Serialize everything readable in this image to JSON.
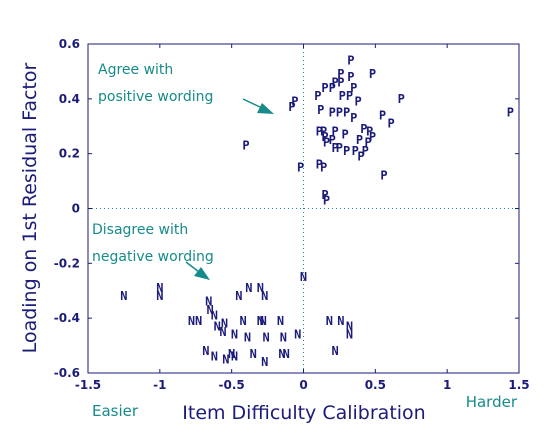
{
  "chart_data": {
    "type": "scatter",
    "xlabel": "Item Difficulty Calibration",
    "ylabel": "Loading on 1st Residual Factor",
    "xlim": [
      -1.5,
      1.5
    ],
    "ylim": [
      -0.6,
      0.6
    ],
    "xticks": [
      "-1.5",
      "-1",
      "-0.5",
      "0",
      "0.5",
      "1",
      "1.5"
    ],
    "yticks": [
      "0.6",
      "0.4",
      "0.2",
      "0",
      "-0.2",
      "-0.4",
      "-0.6"
    ],
    "x_ticks_values": [
      -1.5,
      -1,
      -0.5,
      0,
      0.5,
      1,
      1.5
    ],
    "y_ticks_values": [
      0.6,
      0.4,
      0.2,
      0,
      -0.2,
      -0.4,
      -0.6
    ],
    "reference_lines": {
      "x": 0,
      "y": 0
    },
    "x_end_labels": {
      "left": "Easier",
      "right": "Harder"
    },
    "annotations": [
      {
        "lines": [
          "Agree with",
          "positive wording"
        ]
      },
      {
        "lines": [
          "Disagree with",
          "negative wording"
        ]
      }
    ],
    "series": [
      {
        "marker": "P",
        "points": [
          [
            0.33,
            0.54
          ],
          [
            0.48,
            0.49
          ],
          [
            0.26,
            0.49
          ],
          [
            0.22,
            0.46
          ],
          [
            0.26,
            0.46
          ],
          [
            0.33,
            0.48
          ],
          [
            0.15,
            0.44
          ],
          [
            0.35,
            0.44
          ],
          [
            0.2,
            0.44
          ],
          [
            0.1,
            0.41
          ],
          [
            0.27,
            0.41
          ],
          [
            0.32,
            0.41
          ],
          [
            0.38,
            0.39
          ],
          [
            -0.06,
            0.39
          ],
          [
            0.68,
            0.4
          ],
          [
            -0.08,
            0.37
          ],
          [
            0.12,
            0.36
          ],
          [
            0.2,
            0.35
          ],
          [
            0.25,
            0.35
          ],
          [
            0.3,
            0.35
          ],
          [
            0.55,
            0.34
          ],
          [
            0.35,
            0.33
          ],
          [
            0.42,
            0.29
          ],
          [
            0.61,
            0.31
          ],
          [
            0.46,
            0.28
          ],
          [
            0.48,
            0.26
          ],
          [
            0.11,
            0.28
          ],
          [
            0.14,
            0.28
          ],
          [
            0.22,
            0.28
          ],
          [
            0.29,
            0.27
          ],
          [
            0.39,
            0.25
          ],
          [
            0.15,
            0.26
          ],
          [
            0.2,
            0.25
          ],
          [
            0.16,
            0.24
          ],
          [
            0.45,
            0.24
          ],
          [
            0.22,
            0.22
          ],
          [
            0.25,
            0.22
          ],
          [
            0.3,
            0.21
          ],
          [
            0.36,
            0.21
          ],
          [
            0.43,
            0.21
          ],
          [
            0.4,
            0.19
          ],
          [
            -0.4,
            0.23
          ],
          [
            1.44,
            0.35
          ],
          [
            0.11,
            0.16
          ],
          [
            0.14,
            0.15
          ],
          [
            -0.02,
            0.15
          ],
          [
            0.56,
            0.12
          ],
          [
            0.15,
            0.05
          ],
          [
            0.16,
            0.03
          ]
        ]
      },
      {
        "marker": "N",
        "points": [
          [
            0.0,
            -0.25
          ],
          [
            -1.25,
            -0.32
          ],
          [
            -1.0,
            -0.29
          ],
          [
            -1.0,
            -0.32
          ],
          [
            -0.38,
            -0.29
          ],
          [
            -0.45,
            -0.32
          ],
          [
            -0.3,
            -0.29
          ],
          [
            -0.27,
            -0.32
          ],
          [
            -0.66,
            -0.34
          ],
          [
            -0.65,
            -0.37
          ],
          [
            -0.62,
            -0.39
          ],
          [
            -0.78,
            -0.41
          ],
          [
            -0.73,
            -0.41
          ],
          [
            -0.55,
            -0.42
          ],
          [
            -0.42,
            -0.41
          ],
          [
            -0.3,
            -0.41
          ],
          [
            -0.28,
            -0.41
          ],
          [
            -0.16,
            -0.41
          ],
          [
            -0.6,
            -0.43
          ],
          [
            -0.56,
            -0.45
          ],
          [
            -0.48,
            -0.46
          ],
          [
            -0.39,
            -0.47
          ],
          [
            -0.26,
            -0.47
          ],
          [
            -0.04,
            -0.46
          ],
          [
            -0.14,
            -0.47
          ],
          [
            0.18,
            -0.41
          ],
          [
            0.26,
            -0.41
          ],
          [
            0.32,
            -0.43
          ],
          [
            0.32,
            -0.46
          ],
          [
            -0.68,
            -0.52
          ],
          [
            -0.62,
            -0.54
          ],
          [
            -0.54,
            -0.55
          ],
          [
            -0.5,
            -0.53
          ],
          [
            -0.48,
            -0.54
          ],
          [
            -0.35,
            -0.53
          ],
          [
            -0.27,
            -0.56
          ],
          [
            -0.15,
            -0.53
          ],
          [
            -0.12,
            -0.53
          ],
          [
            0.22,
            -0.52
          ]
        ]
      }
    ]
  }
}
